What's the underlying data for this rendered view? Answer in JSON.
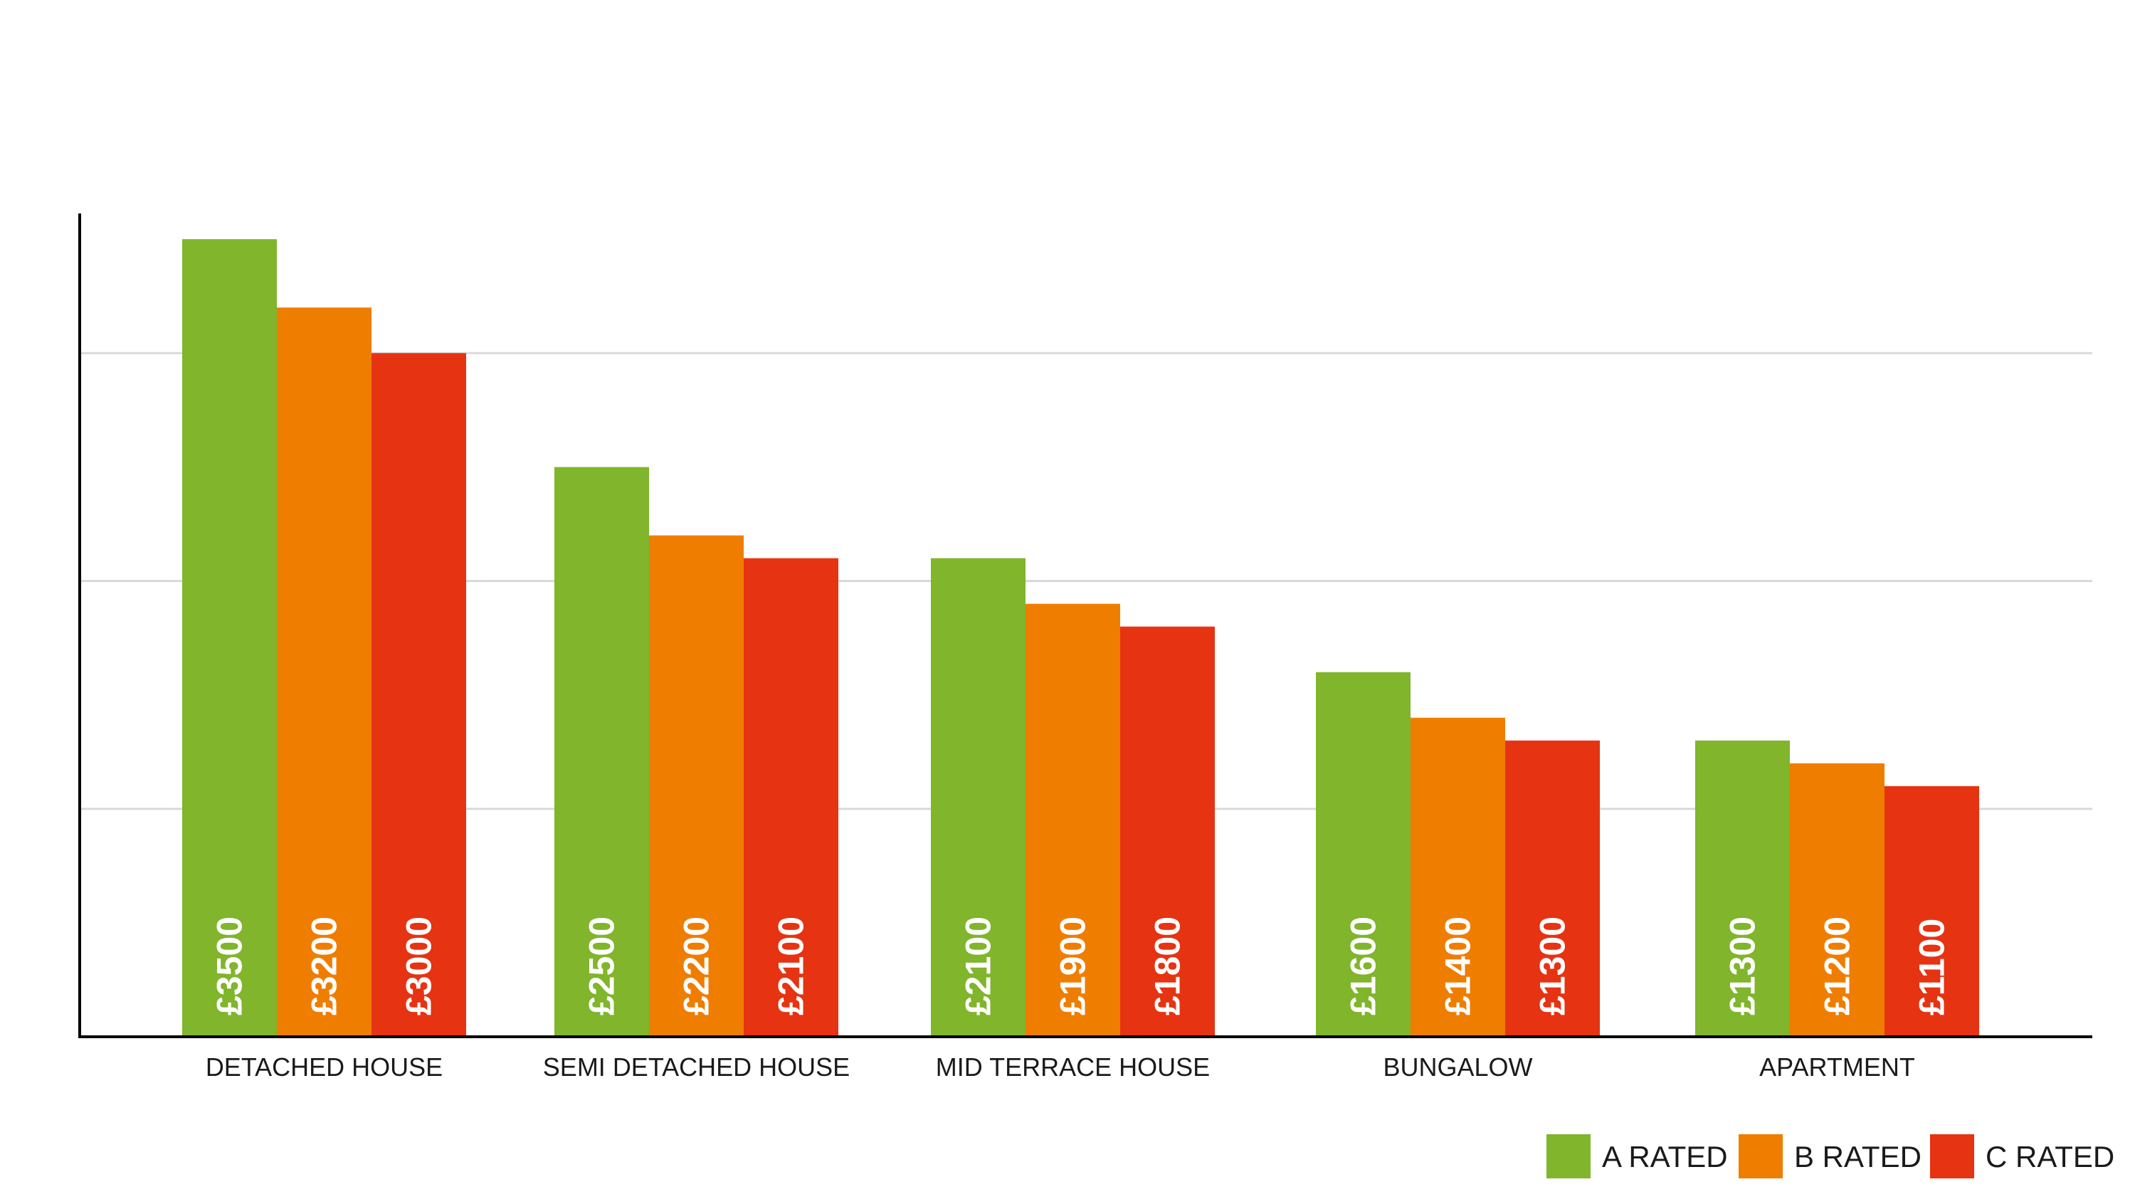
{
  "chart_data": {
    "type": "bar",
    "title": "",
    "xlabel": "",
    "ylabel": "",
    "ylim": [
      0,
      4000
    ],
    "grid": true,
    "legend_position": "bottom-right",
    "categories": [
      "DETACHED HOUSE",
      "SEMI DETACHED HOUSE",
      "MID TERRACE HOUSE",
      "BUNGALOW",
      "APARTMENT"
    ],
    "series": [
      {
        "name": "A RATED",
        "color": "#80b52c",
        "values": [
          3500,
          2500,
          2100,
          1600,
          1300
        ],
        "labels": [
          "£3500",
          "£2500",
          "£2100",
          "£1600",
          "£1300"
        ]
      },
      {
        "name": "B RATED",
        "color": "#ef7d00",
        "values": [
          3200,
          2200,
          1900,
          1400,
          1200
        ],
        "labels": [
          "£3200",
          "£2200",
          "£1900",
          "£1400",
          "£1200"
        ]
      },
      {
        "name": "C RATED",
        "color": "#e63312",
        "values": [
          3000,
          2100,
          1800,
          1300,
          1100
        ],
        "labels": [
          "£3000",
          "£2100",
          "£1800",
          "£1300",
          "£1100"
        ]
      }
    ]
  }
}
